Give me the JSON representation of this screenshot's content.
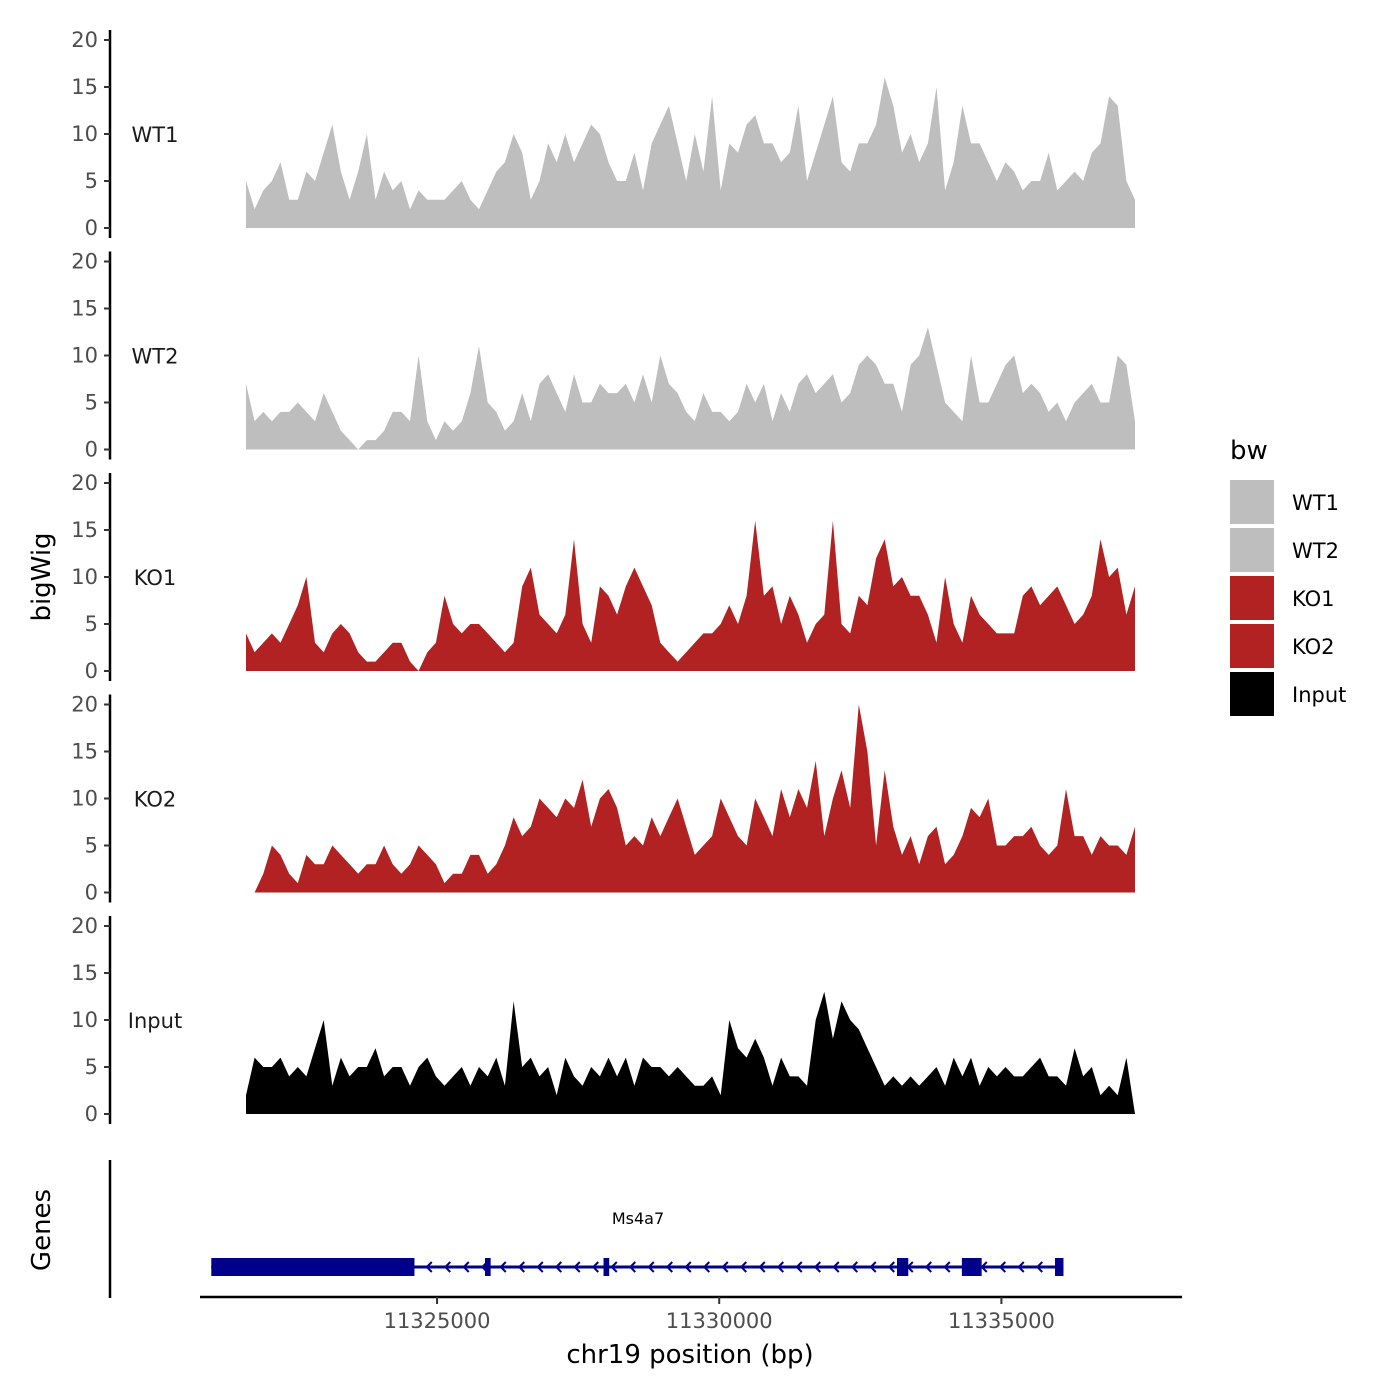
{
  "chart_data": {
    "type": "area",
    "ylabel": "bigWig",
    "xlabel": "chr19 position (bp)",
    "xlim": [
      11320800,
      11338200
    ],
    "ylim": [
      0,
      20
    ],
    "yticks": [
      0,
      5,
      10,
      15,
      20
    ],
    "xticks": [
      11325000,
      11330000,
      11335000
    ],
    "xtick_labels": [
      "11325000",
      "11330000",
      "11335000"
    ],
    "legend": {
      "title": "bw",
      "position": "right",
      "items": [
        {
          "label": "WT1",
          "color": "#bebebe"
        },
        {
          "label": "WT2",
          "color": "#bebebe"
        },
        {
          "label": "KO1",
          "color": "#b22222"
        },
        {
          "label": "KO2",
          "color": "#b22222"
        },
        {
          "label": "Input",
          "color": "#000000"
        }
      ]
    },
    "tracks": [
      {
        "name": "WT1",
        "color": "#bebebe",
        "values": [
          5,
          2,
          4,
          5,
          7,
          3,
          3,
          6,
          5,
          8,
          11,
          6,
          3,
          6,
          10,
          3,
          6,
          4,
          5,
          2,
          4,
          3,
          3,
          3,
          4,
          5,
          3,
          2,
          4,
          6,
          7,
          10,
          8,
          3,
          5,
          9,
          7,
          10,
          7,
          9,
          11,
          10,
          7,
          5,
          5,
          8,
          4,
          9,
          11,
          13,
          9,
          5,
          10,
          6,
          14,
          4,
          9,
          8,
          11,
          12,
          9,
          9,
          7,
          8,
          13,
          5,
          8,
          11,
          14,
          7,
          6,
          9,
          9,
          11,
          16,
          13,
          8,
          10,
          7,
          9,
          15,
          4,
          7,
          13,
          9,
          9,
          7,
          5,
          7,
          6,
          4,
          5,
          5,
          8,
          4,
          5,
          6,
          5,
          8,
          9,
          14,
          13,
          5,
          3
        ]
      },
      {
        "name": "WT2",
        "color": "#bebebe",
        "values": [
          7,
          3,
          4,
          3,
          4,
          4,
          5,
          4,
          3,
          6,
          4,
          2,
          1,
          0,
          1,
          1,
          2,
          4,
          4,
          3,
          10,
          3,
          1,
          3,
          2,
          3,
          6,
          11,
          5,
          4,
          2,
          3,
          6,
          3,
          7,
          8,
          6,
          4,
          8,
          5,
          5,
          7,
          6,
          6,
          7,
          5,
          8,
          5,
          10,
          7,
          6,
          4,
          3,
          6,
          4,
          4,
          3,
          4,
          7,
          5,
          7,
          3,
          6,
          4,
          7,
          8,
          6,
          7,
          8,
          5,
          6,
          9,
          10,
          9,
          7,
          7,
          4,
          9,
          10,
          13,
          9,
          5,
          4,
          3,
          10,
          5,
          5,
          7,
          9,
          10,
          6,
          7,
          6,
          4,
          5,
          3,
          5,
          6,
          7,
          5,
          5,
          10,
          9,
          3
        ]
      },
      {
        "name": "KO1",
        "color": "#b22222",
        "values": [
          4,
          2,
          3,
          4,
          3,
          5,
          7,
          10,
          3,
          2,
          4,
          5,
          4,
          2,
          1,
          1,
          2,
          3,
          3,
          1,
          0,
          2,
          3,
          8,
          5,
          4,
          5,
          5,
          4,
          3,
          2,
          3,
          9,
          11,
          6,
          5,
          4,
          6,
          14,
          5,
          3,
          9,
          8,
          6,
          9,
          11,
          9,
          7,
          3,
          2,
          1,
          2,
          3,
          4,
          4,
          5,
          7,
          5,
          8,
          16,
          8,
          9,
          5,
          8,
          6,
          3,
          5,
          6,
          16,
          5,
          4,
          8,
          7,
          12,
          14,
          9,
          10,
          8,
          8,
          6,
          3,
          10,
          5,
          3,
          8,
          6,
          5,
          4,
          4,
          4,
          8,
          9,
          7,
          8,
          9,
          7,
          5,
          6,
          8,
          14,
          10,
          11,
          6,
          9
        ]
      },
      {
        "name": "KO2",
        "color": "#b22222",
        "values": [
          0,
          0,
          2,
          5,
          4,
          2,
          1,
          4,
          3,
          3,
          5,
          4,
          3,
          2,
          3,
          3,
          5,
          3,
          2,
          3,
          5,
          4,
          3,
          1,
          2,
          2,
          4,
          4,
          2,
          3,
          5,
          8,
          6,
          7,
          10,
          9,
          8,
          10,
          9,
          12,
          7,
          10,
          11,
          9,
          5,
          6,
          5,
          8,
          6,
          8,
          10,
          7,
          4,
          5,
          6,
          10,
          8,
          6,
          5,
          10,
          8,
          6,
          11,
          8,
          11,
          9,
          14,
          6,
          10,
          13,
          9,
          20,
          15,
          5,
          13,
          7,
          4,
          6,
          3,
          6,
          7,
          3,
          4,
          6,
          9,
          8,
          10,
          5,
          5,
          6,
          6,
          7,
          5,
          4,
          5,
          11,
          6,
          6,
          4,
          6,
          5,
          5,
          4,
          7
        ]
      },
      {
        "name": "Input",
        "color": "#000000",
        "values": [
          2,
          6,
          5,
          5,
          6,
          4,
          5,
          4,
          7,
          10,
          3,
          6,
          4,
          5,
          5,
          7,
          4,
          5,
          5,
          3,
          5,
          6,
          4,
          3,
          4,
          5,
          3,
          5,
          4,
          6,
          3,
          12,
          5,
          6,
          4,
          5,
          2,
          6,
          4,
          3,
          5,
          4,
          6,
          4,
          6,
          3,
          6,
          5,
          5,
          4,
          5,
          4,
          3,
          3,
          4,
          2,
          10,
          7,
          6,
          8,
          6,
          3,
          6,
          4,
          4,
          3,
          10,
          13,
          8,
          12,
          10,
          9,
          7,
          5,
          3,
          4,
          3,
          4,
          3,
          4,
          5,
          3,
          6,
          4,
          6,
          3,
          5,
          4,
          5,
          4,
          4,
          5,
          6,
          4,
          4,
          3,
          7,
          4,
          5,
          2,
          3,
          2,
          6,
          0
        ]
      }
    ],
    "genes_label": "Genes",
    "genes": [
      {
        "name": "Ms4a7",
        "strand": "-",
        "start": 11321000,
        "end": 11336100,
        "exons": [
          [
            11321000,
            11324600
          ],
          [
            11325850,
            11325950
          ],
          [
            11327950,
            11328050
          ],
          [
            11333150,
            11333350
          ],
          [
            11334300,
            11334650
          ],
          [
            11335950,
            11336100
          ]
        ]
      }
    ]
  }
}
